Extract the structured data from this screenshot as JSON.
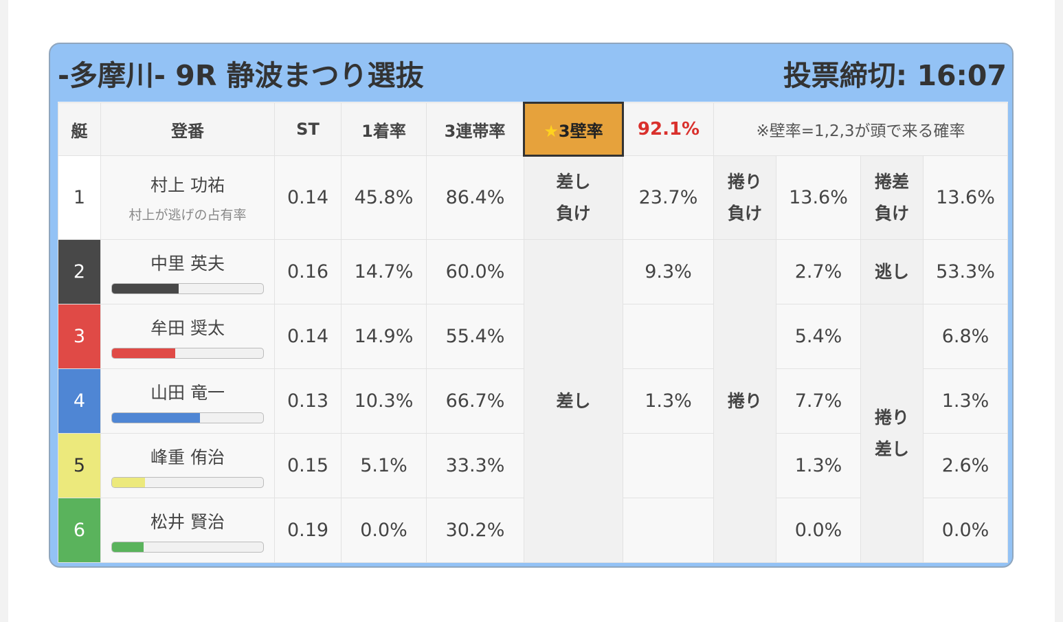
{
  "header": {
    "race_title": "-多摩川- 9R 静波まつり選抜",
    "deadline": "投票締切: 16:07"
  },
  "columns": {
    "boat": "艇",
    "racer": "登番",
    "st": "ST",
    "win_rate": "1着率",
    "top3_rate": "3連帯率",
    "star_glyph": "★",
    "wall_label": "3壁率",
    "wall_value": "92.1%",
    "note": "※壁率=1,2,3が頭で来る確率"
  },
  "rows": [
    {
      "boat": "1",
      "name": "村上 功祐",
      "sub": "村上が逃げの占有率",
      "st": "0.14",
      "win": "45.8%",
      "top3": "86.4%",
      "c1": "23.7%",
      "c2": "13.6%",
      "c3": "13.6%",
      "color": "#ffffff"
    },
    {
      "boat": "2",
      "name": "中里 英夫",
      "st": "0.16",
      "win": "14.7%",
      "top3": "60.0%",
      "c1": "9.3%",
      "c2": "2.7%",
      "c3": "53.3%",
      "bar": 0.44,
      "color": "#484848"
    },
    {
      "boat": "3",
      "name": "牟田 奨太",
      "st": "0.14",
      "win": "14.9%",
      "top3": "55.4%",
      "c1": "",
      "c2": "5.4%",
      "c3": "6.8%",
      "bar": 0.42,
      "color": "#e04a46"
    },
    {
      "boat": "4",
      "name": "山田 竜一",
      "st": "0.13",
      "win": "10.3%",
      "top3": "66.7%",
      "c1": "1.3%",
      "c2": "7.7%",
      "c3": "1.3%",
      "bar": 0.58,
      "color": "#4f86d4"
    },
    {
      "boat": "5",
      "name": "峰重 侑治",
      "st": "0.15",
      "win": "5.1%",
      "top3": "33.3%",
      "c1": "",
      "c2": "1.3%",
      "c3": "2.6%",
      "bar": 0.22,
      "color": "#ece97c"
    },
    {
      "boat": "6",
      "name": "松井 賢治",
      "st": "0.19",
      "win": "0.0%",
      "top3": "30.2%",
      "c1": "",
      "c2": "0.0%",
      "c3": "0.0%",
      "bar": 0.21,
      "color": "#5ab35c"
    }
  ],
  "kimarite": {
    "sashi_lose": "差し\n負け",
    "makuri_lose": "捲り\n負け",
    "makurisashi_lose": "捲差\n負け",
    "sashi": "差し",
    "makuri": "捲り",
    "nige": "逃し",
    "makurisashi": "捲り\n差し"
  }
}
